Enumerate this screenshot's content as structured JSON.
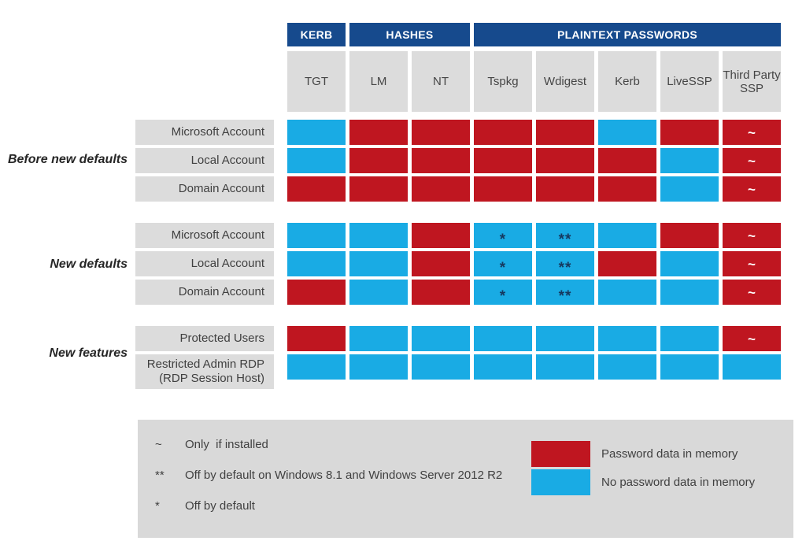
{
  "colors": {
    "navy": "#164a8d",
    "red": "#bf1620",
    "blue": "#19abe4",
    "cell_gray": "#dcdcdc",
    "legend_gray": "#d9d9d9",
    "symbol_dark": "#16395f",
    "text": "#404040"
  },
  "header_groups": [
    {
      "label": "KERB"
    },
    {
      "label": "HASHES"
    },
    {
      "label": "PLAINTEXT PASSWORDS"
    }
  ],
  "columns": [
    "TGT",
    "LM",
    "NT",
    "Tspkg",
    "Wdigest",
    "Kerb",
    "LiveSSP",
    "Third Party SSP"
  ],
  "groups": [
    {
      "label": "Before new defaults",
      "rows": [
        {
          "label": "Microsoft Account",
          "cells": [
            {
              "color": "blue"
            },
            {
              "color": "red"
            },
            {
              "color": "red"
            },
            {
              "color": "red"
            },
            {
              "color": "red"
            },
            {
              "color": "blue"
            },
            {
              "color": "red"
            },
            {
              "color": "red",
              "symbol": "~"
            }
          ]
        },
        {
          "label": "Local Account",
          "cells": [
            {
              "color": "blue"
            },
            {
              "color": "red"
            },
            {
              "color": "red"
            },
            {
              "color": "red"
            },
            {
              "color": "red"
            },
            {
              "color": "red"
            },
            {
              "color": "blue"
            },
            {
              "color": "red",
              "symbol": "~"
            }
          ]
        },
        {
          "label": "Domain Account",
          "cells": [
            {
              "color": "red"
            },
            {
              "color": "red"
            },
            {
              "color": "red"
            },
            {
              "color": "red"
            },
            {
              "color": "red"
            },
            {
              "color": "red"
            },
            {
              "color": "blue"
            },
            {
              "color": "red",
              "symbol": "~"
            }
          ]
        }
      ]
    },
    {
      "label": "New defaults",
      "rows": [
        {
          "label": "Microsoft Account",
          "cells": [
            {
              "color": "blue"
            },
            {
              "color": "blue"
            },
            {
              "color": "red"
            },
            {
              "color": "blue",
              "symbol": "*"
            },
            {
              "color": "blue",
              "symbol": "**"
            },
            {
              "color": "blue"
            },
            {
              "color": "red"
            },
            {
              "color": "red",
              "symbol": "~"
            }
          ]
        },
        {
          "label": "Local Account",
          "cells": [
            {
              "color": "blue"
            },
            {
              "color": "blue"
            },
            {
              "color": "red"
            },
            {
              "color": "blue",
              "symbol": "*"
            },
            {
              "color": "blue",
              "symbol": "**"
            },
            {
              "color": "red"
            },
            {
              "color": "blue"
            },
            {
              "color": "red",
              "symbol": "~"
            }
          ]
        },
        {
          "label": "Domain Account",
          "cells": [
            {
              "color": "red"
            },
            {
              "color": "blue"
            },
            {
              "color": "red"
            },
            {
              "color": "blue",
              "symbol": "*"
            },
            {
              "color": "blue",
              "symbol": "**"
            },
            {
              "color": "blue"
            },
            {
              "color": "blue"
            },
            {
              "color": "red",
              "symbol": "~"
            }
          ]
        }
      ]
    },
    {
      "label": "New features",
      "rows": [
        {
          "label": "Protected Users",
          "cells": [
            {
              "color": "red"
            },
            {
              "color": "blue"
            },
            {
              "color": "blue"
            },
            {
              "color": "blue"
            },
            {
              "color": "blue"
            },
            {
              "color": "blue"
            },
            {
              "color": "blue"
            },
            {
              "color": "red",
              "symbol": "~"
            }
          ]
        },
        {
          "label": "Restricted Admin RDP\n(RDP Session Host)",
          "cells": [
            {
              "color": "blue"
            },
            {
              "color": "blue"
            },
            {
              "color": "blue"
            },
            {
              "color": "blue"
            },
            {
              "color": "blue"
            },
            {
              "color": "blue"
            },
            {
              "color": "blue"
            },
            {
              "color": "blue"
            }
          ]
        }
      ]
    }
  ],
  "legend": {
    "notes": [
      {
        "symbol": "~",
        "text": "Only  if installed"
      },
      {
        "symbol": "**",
        "text": "Off by default on Windows 8.1 and Windows Server 2012 R2"
      },
      {
        "symbol": "*",
        "text": "Off by default"
      }
    ],
    "swatches": [
      {
        "color": "red",
        "label": "Password data in memory"
      },
      {
        "color": "blue",
        "label": "No password data in memory"
      }
    ]
  }
}
